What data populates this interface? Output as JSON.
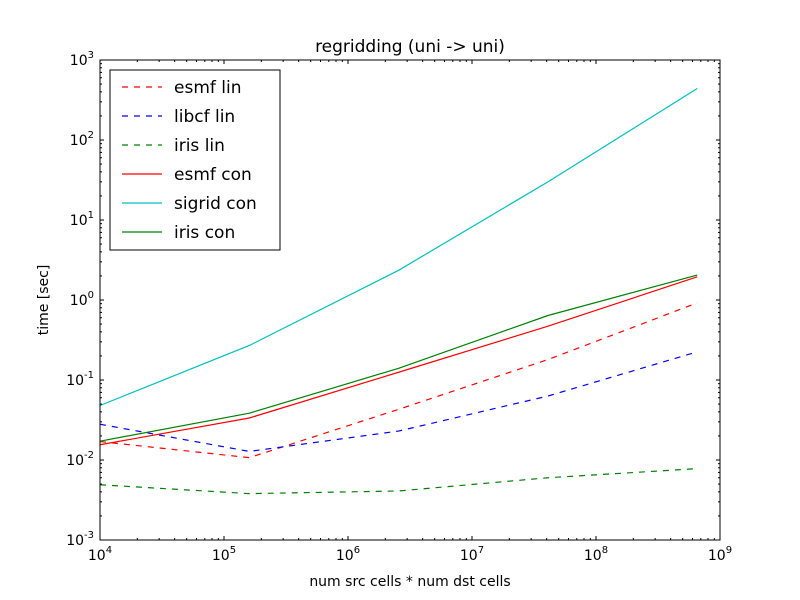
{
  "chart_data": {
    "type": "line",
    "title": "regridding (uni -> uni)",
    "xlabel": "num src cells * num dst cells",
    "ylabel": "time [sec]",
    "xscale": "log",
    "yscale": "log",
    "xlim": [
      10000,
      1000000000
    ],
    "ylim": [
      0.001,
      1000
    ],
    "grid": false,
    "legend_position": "top-left",
    "x_ticks": [
      {
        "value": 10000,
        "base": "10",
        "exp": "4"
      },
      {
        "value": 100000,
        "base": "10",
        "exp": "5"
      },
      {
        "value": 1000000,
        "base": "10",
        "exp": "6"
      },
      {
        "value": 10000000,
        "base": "10",
        "exp": "7"
      },
      {
        "value": 100000000,
        "base": "10",
        "exp": "8"
      },
      {
        "value": 1000000000,
        "base": "10",
        "exp": "9"
      }
    ],
    "y_ticks": [
      {
        "value": 0.001,
        "base": "10",
        "exp": "-3"
      },
      {
        "value": 0.01,
        "base": "10",
        "exp": "-2"
      },
      {
        "value": 0.1,
        "base": "10",
        "exp": "-1"
      },
      {
        "value": 1,
        "base": "10",
        "exp": "0"
      },
      {
        "value": 10,
        "base": "10",
        "exp": "1"
      },
      {
        "value": 100,
        "base": "10",
        "exp": "2"
      },
      {
        "value": 1000,
        "base": "10",
        "exp": "3"
      }
    ],
    "x": [
      10000,
      160000,
      2560000,
      40960000,
      655360000
    ],
    "series": [
      {
        "name": "esmf lin",
        "color": "#ff0000",
        "dash": "dashed",
        "values": [
          0.017,
          0.0107,
          0.043,
          0.18,
          0.92
        ]
      },
      {
        "name": "libcf lin",
        "color": "#0000ff",
        "dash": "dashed",
        "values": [
          0.028,
          0.0128,
          0.023,
          0.063,
          0.225
        ]
      },
      {
        "name": "iris lin",
        "color": "#008000",
        "dash": "dashed",
        "values": [
          0.0049,
          0.0038,
          0.0041,
          0.006,
          0.0078
        ]
      },
      {
        "name": "esmf con",
        "color": "#ff0000",
        "dash": "solid",
        "values": [
          0.0155,
          0.0335,
          0.125,
          0.47,
          1.95
        ]
      },
      {
        "name": "sigrid con",
        "color": "#00bfbf",
        "dash": "solid",
        "values": [
          0.048,
          0.27,
          2.35,
          30,
          440
        ]
      },
      {
        "name": "iris con",
        "color": "#008000",
        "dash": "solid",
        "values": [
          0.0172,
          0.0385,
          0.14,
          0.64,
          2.05
        ]
      }
    ]
  }
}
